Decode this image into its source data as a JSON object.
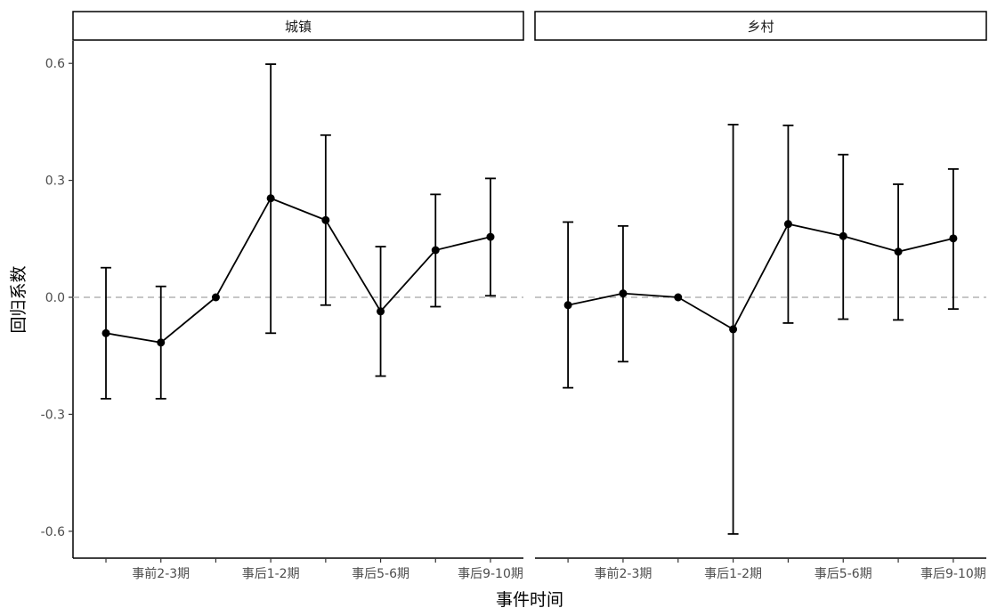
{
  "chart_data": {
    "type": "line",
    "ylabel": "回归系数",
    "xlabel": "事件时间",
    "ylim": [
      -0.66,
      0.66
    ],
    "yticks": [
      -0.6,
      -0.3,
      0.0,
      0.3,
      0.6
    ],
    "ytick_labels": [
      "-0.6",
      "-0.3",
      "0.0",
      "0.3",
      "0.6"
    ],
    "x": [
      1,
      2,
      3,
      4,
      5,
      6,
      7,
      8
    ],
    "xlim": [
      0.4,
      8.6
    ],
    "xticks": [
      1,
      2,
      3,
      4,
      5,
      6,
      7,
      8
    ],
    "xtick_labels": [
      "",
      "事前2-3期",
      "",
      "事后1-2期",
      "",
      "事后5-6期",
      "",
      "事后9-10期"
    ],
    "reference_line": {
      "y": 0,
      "style": "dashed",
      "color": "#b3b3b3"
    },
    "grid": false,
    "series_color": "#000000",
    "panels": [
      {
        "title": "城镇",
        "estimate": [
          -0.092,
          -0.116,
          0.0,
          0.254,
          0.198,
          -0.036,
          0.121,
          0.155
        ],
        "lower": [
          -0.26,
          -0.26,
          0.0,
          -0.092,
          -0.02,
          -0.202,
          -0.024,
          0.004
        ],
        "upper": [
          0.076,
          0.028,
          0.0,
          0.598,
          0.416,
          0.13,
          0.264,
          0.305
        ]
      },
      {
        "title": "乡村",
        "estimate": [
          -0.02,
          0.01,
          0.0,
          -0.082,
          0.188,
          0.157,
          0.117,
          0.151
        ],
        "lower": [
          -0.232,
          -0.165,
          0.0,
          -0.607,
          -0.066,
          -0.056,
          -0.058,
          -0.03
        ],
        "upper": [
          0.193,
          0.183,
          0.0,
          0.443,
          0.441,
          0.366,
          0.29,
          0.329
        ]
      }
    ]
  }
}
